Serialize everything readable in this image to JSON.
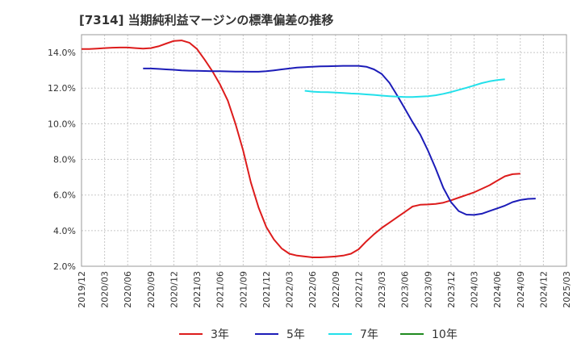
{
  "chart_data": {
    "type": "line",
    "title": "[7314]  当期純利益マージンの標準偏差の推移",
    "xlabel": "",
    "ylabel": "",
    "ylim": [
      2.0,
      15.0
    ],
    "y_ticks": [
      2.0,
      4.0,
      6.0,
      8.0,
      10.0,
      12.0,
      14.0
    ],
    "y_tick_labels": [
      "2.0%",
      "4.0%",
      "6.0%",
      "8.0%",
      "10.0%",
      "12.0%",
      "14.0%"
    ],
    "x_ticks": [
      "2019/12",
      "2020/03",
      "2020/06",
      "2020/09",
      "2020/12",
      "2021/03",
      "2021/06",
      "2021/09",
      "2021/12",
      "2022/03",
      "2022/06",
      "2022/09",
      "2022/12",
      "2023/03",
      "2023/06",
      "2023/09",
      "2023/12",
      "2024/03",
      "2024/06",
      "2024/09",
      "2024/12",
      "2025/03"
    ],
    "grid": true,
    "legend_position": "bottom",
    "series": [
      {
        "name": "3年",
        "color": "#dd1c1c",
        "points": [
          [
            0,
            14.2
          ],
          [
            1,
            14.2
          ],
          [
            2,
            14.22
          ],
          [
            3,
            14.25
          ],
          [
            4,
            14.27
          ],
          [
            5,
            14.28
          ],
          [
            6,
            14.28
          ],
          [
            7,
            14.25
          ],
          [
            8,
            14.22
          ],
          [
            9,
            14.25
          ],
          [
            10,
            14.35
          ],
          [
            11,
            14.5
          ],
          [
            12,
            14.65
          ],
          [
            13,
            14.68
          ],
          [
            14,
            14.55
          ],
          [
            15,
            14.2
          ],
          [
            16,
            13.6
          ],
          [
            17,
            12.95
          ],
          [
            18,
            12.2
          ],
          [
            19,
            11.3
          ],
          [
            20,
            10.0
          ],
          [
            21,
            8.5
          ],
          [
            22,
            6.7
          ],
          [
            23,
            5.3
          ],
          [
            24,
            4.2
          ],
          [
            25,
            3.5
          ],
          [
            26,
            3.0
          ],
          [
            27,
            2.7
          ],
          [
            28,
            2.6
          ],
          [
            29,
            2.55
          ],
          [
            30,
            2.5
          ],
          [
            31,
            2.5
          ],
          [
            32,
            2.52
          ],
          [
            33,
            2.55
          ],
          [
            34,
            2.6
          ],
          [
            35,
            2.7
          ],
          [
            36,
            2.95
          ],
          [
            37,
            3.4
          ],
          [
            38,
            3.8
          ],
          [
            39,
            4.15
          ],
          [
            40,
            4.45
          ],
          [
            41,
            4.75
          ],
          [
            42,
            5.05
          ],
          [
            43,
            5.35
          ],
          [
            44,
            5.45
          ],
          [
            45,
            5.47
          ],
          [
            46,
            5.5
          ],
          [
            47,
            5.57
          ],
          [
            48,
            5.7
          ],
          [
            49,
            5.85
          ],
          [
            50,
            6.0
          ],
          [
            51,
            6.15
          ],
          [
            52,
            6.35
          ],
          [
            53,
            6.55
          ],
          [
            54,
            6.8
          ],
          [
            55,
            7.05
          ],
          [
            56,
            7.17
          ],
          [
            57,
            7.2
          ]
        ]
      },
      {
        "name": "5年",
        "color": "#1c1cb8",
        "points": [
          [
            8,
            13.1
          ],
          [
            9,
            13.1
          ],
          [
            10,
            13.08
          ],
          [
            11,
            13.05
          ],
          [
            12,
            13.03
          ],
          [
            13,
            13.0
          ],
          [
            14,
            12.98
          ],
          [
            15,
            12.97
          ],
          [
            16,
            12.96
          ],
          [
            17,
            12.95
          ],
          [
            18,
            12.95
          ],
          [
            19,
            12.94
          ],
          [
            20,
            12.93
          ],
          [
            21,
            12.93
          ],
          [
            22,
            12.92
          ],
          [
            23,
            12.92
          ],
          [
            24,
            12.95
          ],
          [
            25,
            13.0
          ],
          [
            26,
            13.05
          ],
          [
            27,
            13.1
          ],
          [
            28,
            13.15
          ],
          [
            29,
            13.18
          ],
          [
            30,
            13.2
          ],
          [
            31,
            13.22
          ],
          [
            32,
            13.23
          ],
          [
            33,
            13.24
          ],
          [
            34,
            13.25
          ],
          [
            35,
            13.25
          ],
          [
            36,
            13.25
          ],
          [
            37,
            13.2
          ],
          [
            38,
            13.05
          ],
          [
            39,
            12.8
          ],
          [
            40,
            12.3
          ],
          [
            41,
            11.6
          ],
          [
            42,
            10.85
          ],
          [
            43,
            10.1
          ],
          [
            44,
            9.4
          ],
          [
            45,
            8.5
          ],
          [
            46,
            7.5
          ],
          [
            47,
            6.4
          ],
          [
            48,
            5.6
          ],
          [
            49,
            5.1
          ],
          [
            50,
            4.9
          ],
          [
            51,
            4.88
          ],
          [
            52,
            4.95
          ],
          [
            53,
            5.1
          ],
          [
            54,
            5.25
          ],
          [
            55,
            5.4
          ],
          [
            56,
            5.6
          ],
          [
            57,
            5.72
          ],
          [
            58,
            5.78
          ],
          [
            59,
            5.8
          ]
        ]
      },
      {
        "name": "7年",
        "color": "#22e0ea",
        "points": [
          [
            29,
            11.85
          ],
          [
            30,
            11.8
          ],
          [
            31,
            11.78
          ],
          [
            32,
            11.77
          ],
          [
            33,
            11.75
          ],
          [
            34,
            11.73
          ],
          [
            35,
            11.7
          ],
          [
            36,
            11.68
          ],
          [
            37,
            11.65
          ],
          [
            38,
            11.62
          ],
          [
            39,
            11.58
          ],
          [
            40,
            11.55
          ],
          [
            41,
            11.52
          ],
          [
            42,
            11.5
          ],
          [
            43,
            11.5
          ],
          [
            44,
            11.52
          ],
          [
            45,
            11.55
          ],
          [
            46,
            11.6
          ],
          [
            47,
            11.68
          ],
          [
            48,
            11.78
          ],
          [
            49,
            11.9
          ],
          [
            50,
            12.02
          ],
          [
            51,
            12.15
          ],
          [
            52,
            12.28
          ],
          [
            53,
            12.38
          ],
          [
            54,
            12.45
          ],
          [
            55,
            12.5
          ]
        ]
      },
      {
        "name": "10年",
        "color": "#1f8a1f",
        "points": []
      }
    ]
  }
}
